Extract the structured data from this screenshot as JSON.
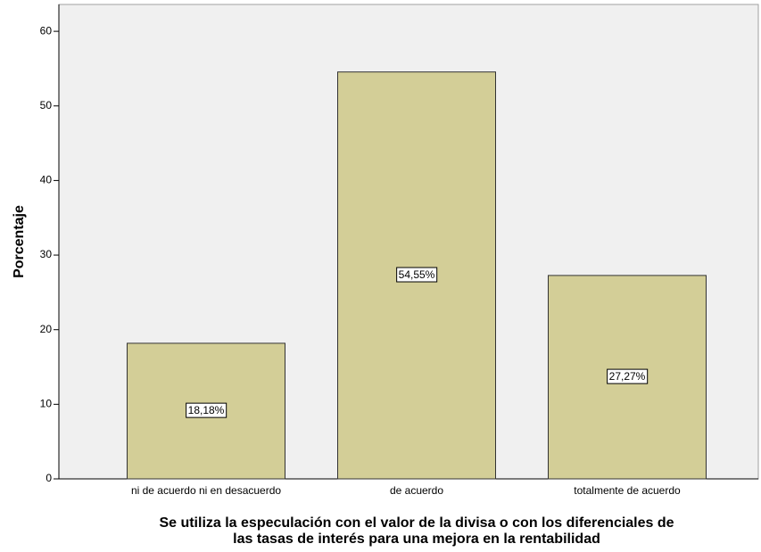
{
  "chart_data": {
    "type": "bar",
    "ylabel": "Porcentaje",
    "xlabel": [
      "Se utiliza la especulación con el valor de la divisa o con los diferenciales de",
      "las tasas de interés para  una mejora en la rentabilidad"
    ],
    "categories": [
      "ni de acuerdo ni en desacuerdo",
      "de acuerdo",
      "totalmente de acuerdo"
    ],
    "values": [
      18.18,
      54.55,
      27.27
    ],
    "value_labels": [
      "18,18%",
      "54,55%",
      "27,27%"
    ],
    "color": "#d3ce97",
    "ylim": [
      0,
      63.6
    ],
    "yticks": [
      0,
      10,
      20,
      30,
      40,
      50,
      60
    ],
    "grid": false
  }
}
